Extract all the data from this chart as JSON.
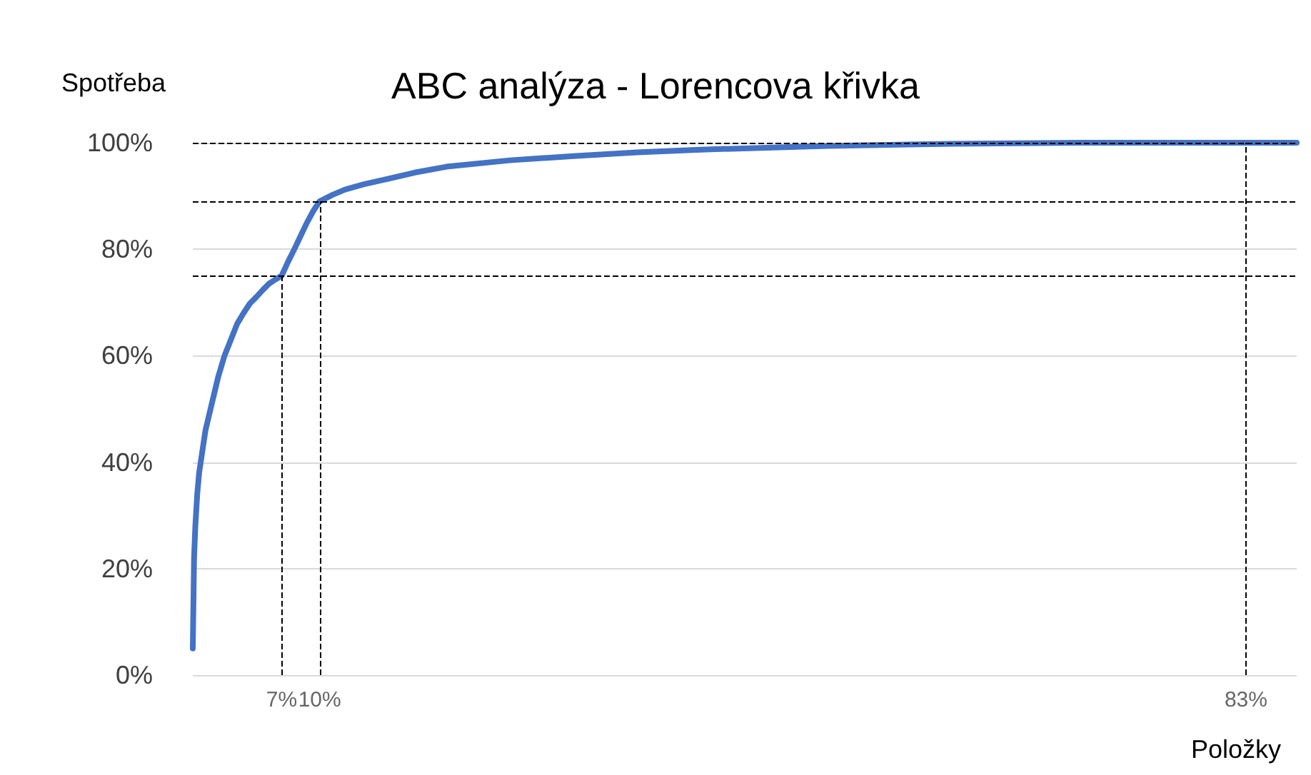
{
  "chart_data": {
    "type": "line",
    "title": "ABC analýza - Lorencova křivka",
    "xlabel": "Položky",
    "ylabel": "Spotřeba",
    "series": [
      {
        "color": "#4472c4",
        "x": [
          0,
          0.1,
          0.2,
          0.35,
          0.5,
          0.75,
          1,
          1.5,
          2,
          2.5,
          3,
          3.5,
          4,
          4.5,
          5,
          5.5,
          6,
          6.5,
          7,
          7.5,
          8,
          8.5,
          9,
          9.5,
          10,
          11,
          12,
          13.5,
          15,
          17.5,
          20,
          25,
          30,
          35,
          40,
          50,
          60,
          70,
          83,
          87
        ],
        "values": [
          5,
          22,
          28,
          34,
          38,
          42,
          46,
          51,
          56,
          60,
          63,
          66,
          68,
          69.8,
          71,
          72.3,
          73.5,
          74.3,
          75,
          77.6,
          80,
          82.5,
          85,
          87.2,
          89,
          90.2,
          91.2,
          92.2,
          93,
          94.4,
          95.5,
          96.7,
          97.5,
          98.2,
          98.7,
          99.4,
          99.8,
          100,
          100,
          100
        ]
      }
    ],
    "xlim": [
      0,
      87
    ],
    "ylim": [
      0,
      100
    ],
    "yticks": [
      {
        "value": 0,
        "label": "0%"
      },
      {
        "value": 20,
        "label": "20%"
      },
      {
        "value": 40,
        "label": "40%"
      },
      {
        "value": 60,
        "label": "60%"
      },
      {
        "value": 80,
        "label": "80%"
      },
      {
        "value": 100,
        "label": "100%"
      }
    ],
    "ref_lines": [
      {
        "axis": "x",
        "value": 7,
        "label": "7%",
        "line_style": "dashed",
        "color": "#000000"
      },
      {
        "axis": "x",
        "value": 10,
        "label": "10%",
        "line_style": "dashed",
        "color": "#000000"
      },
      {
        "axis": "x",
        "value": 83,
        "label": "83%",
        "line_style": "dashed",
        "color": "#000000"
      },
      {
        "axis": "y",
        "value": 75,
        "line_style": "dashed",
        "color": "#000000"
      },
      {
        "axis": "y",
        "value": 89,
        "line_style": "dashed",
        "color": "#000000"
      },
      {
        "axis": "y",
        "value": 100,
        "line_style": "dashed",
        "color": "#000000"
      }
    ],
    "grid": "y",
    "tick_labels": "y",
    "marker": "none",
    "line_style": "solid"
  }
}
